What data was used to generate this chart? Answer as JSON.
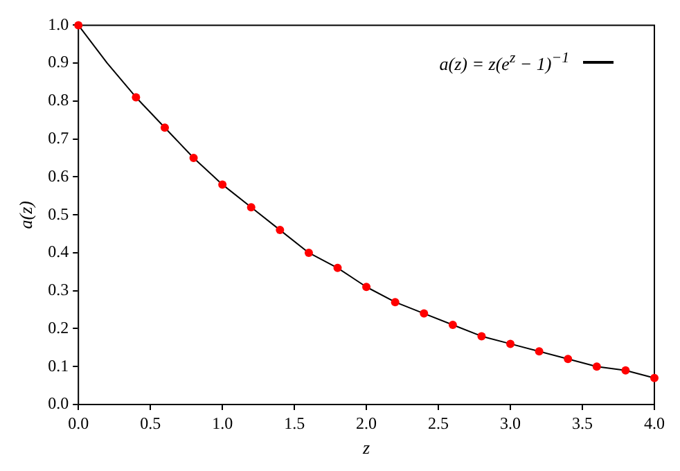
{
  "chart_data": {
    "type": "line",
    "xlabel": "z",
    "ylabel": "a(z)",
    "xlim": [
      0,
      4
    ],
    "xticks": [
      {
        "value": 0,
        "label": "0.0"
      },
      {
        "value": 0.5,
        "label": "0.5"
      },
      {
        "value": 1,
        "label": "1.0"
      },
      {
        "value": 1.5,
        "label": "1.5"
      },
      {
        "value": 2,
        "label": "2.0"
      },
      {
        "value": 2.5,
        "label": "2.5"
      },
      {
        "value": 3,
        "label": "3.0"
      },
      {
        "value": 3.5,
        "label": "3.5"
      },
      {
        "value": 4,
        "label": "4.0"
      }
    ],
    "ylim": [
      0,
      1
    ],
    "yticks": [
      {
        "value": 0,
        "label": "0.0"
      },
      {
        "value": 0.1,
        "label": "0.1"
      },
      {
        "value": 0.2,
        "label": "0.2"
      },
      {
        "value": 0.3,
        "label": "0.3"
      },
      {
        "value": 0.4,
        "label": "0.4"
      },
      {
        "value": 0.5,
        "label": "0.5"
      },
      {
        "value": 0.6,
        "label": "0.6"
      },
      {
        "value": 0.7,
        "label": "0.7"
      },
      {
        "value": 0.8,
        "label": "0.8"
      },
      {
        "value": 0.9,
        "label": "0.9"
      },
      {
        "value": 1,
        "label": "1.0"
      }
    ],
    "grid": false,
    "legend": "top right",
    "series": [
      {
        "name": "a(z) = z(e$^{z}$ − 1)$^{−1}$",
        "type": "line",
        "color": "#000000",
        "marker": "none",
        "line_style": "solid",
        "x": [
          0,
          0.2,
          0.4,
          0.6,
          0.8,
          1.0,
          1.2,
          1.4,
          1.6,
          1.8,
          2.0,
          2.2,
          2.4,
          2.6,
          2.8,
          3.0,
          3.2,
          3.4,
          3.6,
          3.8,
          4.0
        ],
        "values": [
          1.0,
          0.9,
          0.81,
          0.73,
          0.65,
          0.58,
          0.52,
          0.46,
          0.4,
          0.36,
          0.31,
          0.27,
          0.24,
          0.21,
          0.18,
          0.16,
          0.14,
          0.12,
          0.1,
          0.09,
          0.07
        ]
      },
      {
        "type": "scatter",
        "color": "#ff0000",
        "marker": "circle",
        "x": [
          0,
          0.4,
          0.6,
          0.8,
          1.0,
          1.2,
          1.4,
          1.6,
          1.8,
          2.0,
          2.2,
          2.4,
          2.6,
          2.8,
          3.0,
          3.2,
          3.4,
          3.6,
          3.8,
          4.0
        ],
        "values": [
          1.0,
          0.81,
          0.73,
          0.65,
          0.58,
          0.52,
          0.46,
          0.4,
          0.36,
          0.31,
          0.27,
          0.24,
          0.21,
          0.18,
          0.16,
          0.14,
          0.12,
          0.1,
          0.09,
          0.07
        ]
      }
    ]
  }
}
